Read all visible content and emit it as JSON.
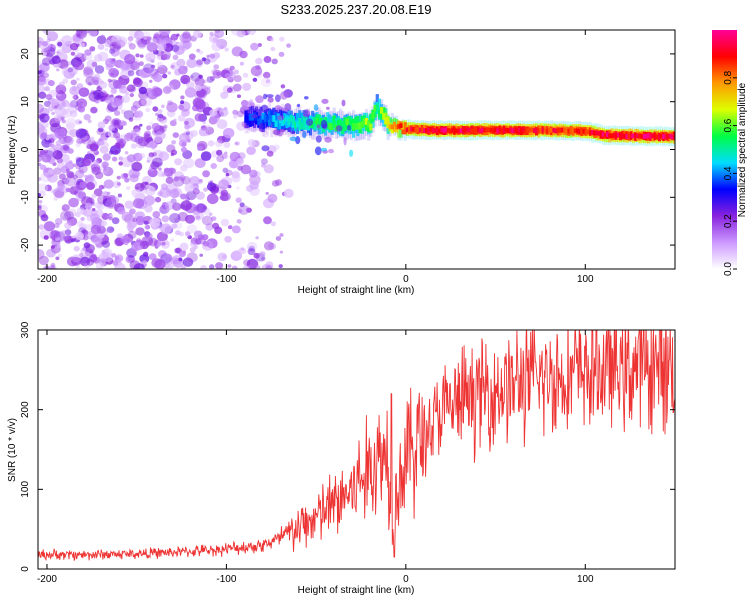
{
  "title": "S233.2025.237.20.08.E19",
  "chart_data": [
    {
      "type": "heatmap",
      "name": "spectrogram",
      "xlabel": "Height of straight line (km)",
      "ylabel": "Frequency (Hz)",
      "xlim": [
        -205,
        150
      ],
      "ylim": [
        -25,
        25
      ],
      "xticks": [
        -200,
        -100,
        0,
        100
      ],
      "yticks": [
        -20,
        -10,
        0,
        10,
        20
      ],
      "colorbar": {
        "label": "Normalized spectral amplitude",
        "range": [
          0,
          1
        ],
        "ticks": [
          0.0,
          0.2,
          0.4,
          0.6,
          0.8
        ],
        "colors": [
          "#ffffff",
          "#cc99ff",
          "#8822dd",
          "#0000ff",
          "#00ddff",
          "#00ff44",
          "#ddff00",
          "#ff9900",
          "#ff0000",
          "#ff0099"
        ]
      },
      "noise_region": {
        "x": [
          -205,
          -65
        ],
        "freq": [
          -25,
          25
        ],
        "amplitude": [
          0.05,
          0.25
        ]
      },
      "signal_ridge": {
        "x": [
          -90,
          -70,
          -50,
          -30,
          -20,
          -17,
          -10,
          0,
          20,
          40,
          60,
          80,
          100,
          110,
          130,
          150
        ],
        "freq": [
          6.5,
          6,
          5.5,
          5,
          5.5,
          9,
          5,
          4.2,
          4,
          4,
          4,
          4,
          3.8,
          3,
          2.8,
          2.7
        ],
        "amplitude": [
          0.35,
          0.45,
          0.55,
          0.6,
          0.65,
          0.55,
          0.75,
          0.9,
          0.95,
          0.95,
          0.95,
          0.9,
          0.9,
          0.95,
          0.95,
          0.95
        ]
      }
    },
    {
      "type": "line",
      "name": "snr",
      "xlabel": "Height of straight line (km)",
      "ylabel": "SNR (10 * v/v)",
      "xlim": [
        -205,
        150
      ],
      "ylim": [
        0,
        300
      ],
      "xticks": [
        -200,
        -100,
        0,
        100
      ],
      "yticks": [
        0,
        100,
        200,
        300
      ],
      "color": "#ee3333",
      "series": [
        {
          "name": "SNR",
          "x": [
            -205,
            -180,
            -150,
            -120,
            -100,
            -80,
            -70,
            -60,
            -50,
            -40,
            -30,
            -20,
            -15,
            -10,
            -8,
            -5,
            0,
            10,
            20,
            30,
            40,
            60,
            80,
            100,
            120,
            150
          ],
          "values": [
            18,
            18,
            19,
            22,
            25,
            30,
            38,
            50,
            65,
            80,
            100,
            125,
            140,
            150,
            60,
            100,
            140,
            170,
            195,
            210,
            220,
            232,
            240,
            248,
            252,
            256
          ]
        }
      ],
      "spike": {
        "x": -8,
        "peak": 220,
        "dip": 15
      }
    }
  ]
}
